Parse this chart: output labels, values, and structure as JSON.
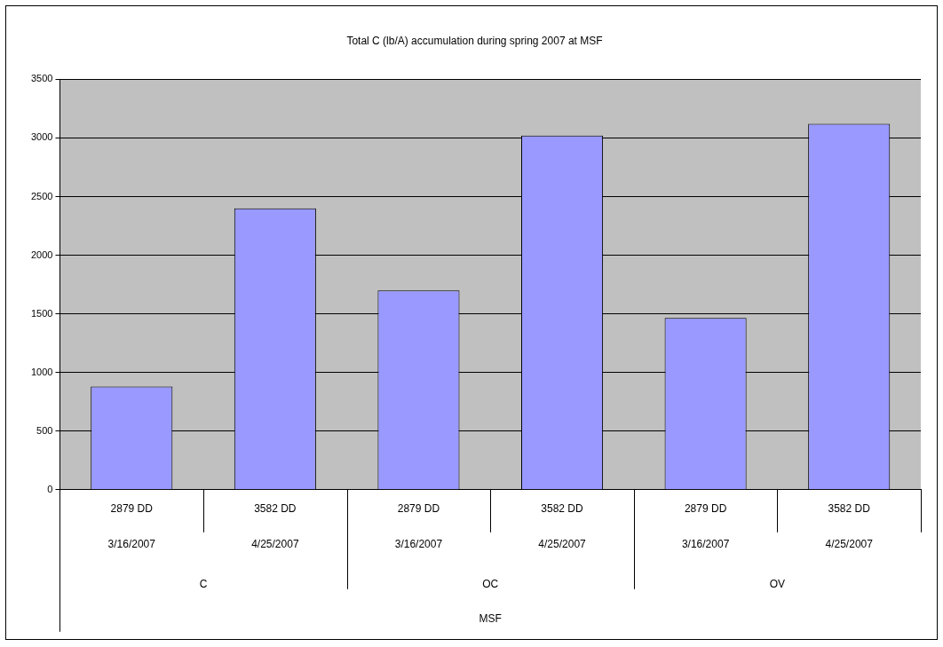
{
  "chart_data": {
    "type": "bar",
    "title": "Total C (lb/A) accumulation during spring 2007 at MSF",
    "categories": [
      "2879 DD\n3/16/2007",
      "3582 DD\n4/25/2007",
      "2879 DD\n3/16/2007",
      "3582 DD\n4/25/2007",
      "2879 DD\n3/16/2007",
      "3582 DD\n4/25/2007"
    ],
    "values": [
      880,
      2400,
      1700,
      3020,
      1465,
      3120
    ],
    "color": "#9999ff",
    "ylim": [
      0,
      3500
    ],
    "yticks": [
      0,
      500,
      1000,
      1500,
      2000,
      2500,
      3000,
      3500
    ],
    "grid": "y",
    "legend": false,
    "annotations": [
      "C",
      "OC",
      "OV",
      "MSF"
    ]
  }
}
